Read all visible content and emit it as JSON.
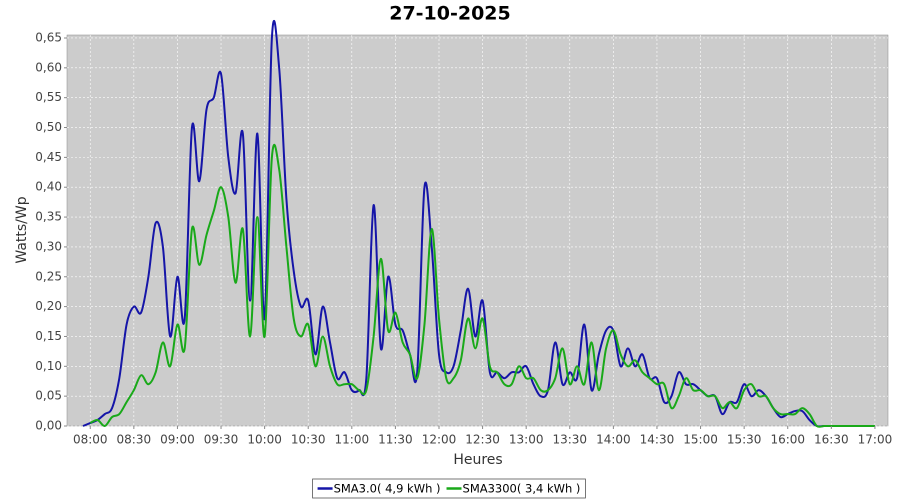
{
  "chart_data": {
    "type": "line",
    "title": "27-10-2025",
    "x_label": "Heures",
    "y_label": "Watts/Wp",
    "x": [
      "07:55",
      "08:00",
      "08:05",
      "08:10",
      "08:15",
      "08:20",
      "08:25",
      "08:30",
      "08:35",
      "08:40",
      "08:45",
      "08:50",
      "08:55",
      "09:00",
      "09:05",
      "09:10",
      "09:15",
      "09:20",
      "09:25",
      "09:30",
      "09:35",
      "09:40",
      "09:45",
      "09:50",
      "09:55",
      "10:00",
      "10:05",
      "10:10",
      "10:15",
      "10:20",
      "10:25",
      "10:30",
      "10:35",
      "10:40",
      "10:45",
      "10:50",
      "10:55",
      "11:00",
      "11:05",
      "11:10",
      "11:15",
      "11:20",
      "11:25",
      "11:30",
      "11:35",
      "11:40",
      "11:45",
      "11:50",
      "11:55",
      "12:00",
      "12:05",
      "12:10",
      "12:15",
      "12:20",
      "12:25",
      "12:30",
      "12:35",
      "12:40",
      "12:45",
      "12:50",
      "12:55",
      "13:00",
      "13:05",
      "13:10",
      "13:15",
      "13:20",
      "13:25",
      "13:30",
      "13:35",
      "13:40",
      "13:45",
      "13:50",
      "13:55",
      "14:00",
      "14:05",
      "14:10",
      "14:15",
      "14:20",
      "14:25",
      "14:30",
      "14:35",
      "14:40",
      "14:45",
      "14:50",
      "14:55",
      "15:00",
      "15:05",
      "15:10",
      "15:15",
      "15:20",
      "15:25",
      "15:30",
      "15:35",
      "15:40",
      "15:45",
      "15:50",
      "15:55",
      "16:00",
      "16:05",
      "16:10",
      "16:15",
      "16:20",
      "16:25",
      "16:30",
      "16:35",
      "16:40",
      "16:45",
      "16:50",
      "16:55",
      "17:00"
    ],
    "series": [
      {
        "name": "SMA3.0( 4,9 kWh )",
        "color": "#1515a8",
        "values": [
          0,
          0.005,
          0.01,
          0.02,
          0.03,
          0.08,
          0.17,
          0.2,
          0.19,
          0.25,
          0.34,
          0.3,
          0.15,
          0.25,
          0.18,
          0.5,
          0.41,
          0.53,
          0.55,
          0.59,
          0.45,
          0.39,
          0.49,
          0.21,
          0.49,
          0.18,
          0.65,
          0.6,
          0.38,
          0.26,
          0.2,
          0.21,
          0.12,
          0.2,
          0.14,
          0.08,
          0.09,
          0.06,
          0.06,
          0.08,
          0.37,
          0.13,
          0.25,
          0.17,
          0.16,
          0.12,
          0.09,
          0.4,
          0.3,
          0.12,
          0.09,
          0.1,
          0.16,
          0.23,
          0.15,
          0.21,
          0.09,
          0.09,
          0.08,
          0.09,
          0.09,
          0.1,
          0.07,
          0.05,
          0.06,
          0.14,
          0.07,
          0.09,
          0.08,
          0.17,
          0.06,
          0.12,
          0.16,
          0.16,
          0.1,
          0.13,
          0.1,
          0.12,
          0.08,
          0.08,
          0.04,
          0.05,
          0.09,
          0.07,
          0.07,
          0.06,
          0.05,
          0.05,
          0.02,
          0.04,
          0.04,
          0.07,
          0.05,
          0.06,
          0.05,
          0.03,
          0.015,
          0.02,
          0.025,
          0.025,
          0.01,
          0,
          0,
          0,
          0,
          0,
          0,
          0,
          null,
          null
        ]
      },
      {
        "name": "SMA3300( 3,4 kWh )",
        "color": "#19a919",
        "values": [
          null,
          0.005,
          0.01,
          0,
          0.015,
          0.02,
          0.04,
          0.06,
          0.085,
          0.07,
          0.09,
          0.14,
          0.1,
          0.17,
          0.13,
          0.33,
          0.27,
          0.32,
          0.36,
          0.4,
          0.35,
          0.24,
          0.33,
          0.15,
          0.35,
          0.15,
          0.45,
          0.43,
          0.3,
          0.18,
          0.15,
          0.17,
          0.1,
          0.15,
          0.1,
          0.07,
          0.07,
          0.07,
          0.06,
          0.06,
          0.15,
          0.28,
          0.16,
          0.19,
          0.14,
          0.12,
          0.08,
          0.17,
          0.33,
          0.18,
          0.08,
          0.08,
          0.11,
          0.18,
          0.13,
          0.18,
          0.1,
          0.09,
          0.07,
          0.07,
          0.1,
          0.08,
          0.08,
          0.06,
          0.06,
          0.08,
          0.13,
          0.07,
          0.1,
          0.07,
          0.14,
          0.06,
          0.13,
          0.16,
          0.12,
          0.1,
          0.11,
          0.09,
          0.08,
          0.07,
          0.07,
          0.03,
          0.05,
          0.08,
          0.06,
          0.06,
          0.05,
          0.05,
          0.03,
          0.04,
          0.03,
          0.06,
          0.07,
          0.05,
          0.05,
          0.03,
          0.02,
          0.02,
          0.02,
          0.03,
          0.02,
          0,
          0,
          0,
          0,
          0,
          0,
          0,
          0,
          0
        ]
      }
    ],
    "xlim": [
      "07:44",
      "17:09"
    ],
    "xticks": [
      "08:00",
      "08:30",
      "09:00",
      "09:30",
      "10:00",
      "10:30",
      "11:00",
      "11:30",
      "12:00",
      "12:30",
      "13:00",
      "13:30",
      "14:00",
      "14:30",
      "15:00",
      "15:30",
      "16:00",
      "16:30",
      "17:00"
    ],
    "ylim": [
      0,
      0.655
    ],
    "yticks": [
      {
        "value": 0,
        "label": "0,00"
      },
      {
        "value": 0.05,
        "label": "0,05"
      },
      {
        "value": 0.1,
        "label": "0,10"
      },
      {
        "value": 0.15,
        "label": "0,15"
      },
      {
        "value": 0.2,
        "label": "0,20"
      },
      {
        "value": 0.25,
        "label": "0,25"
      },
      {
        "value": 0.3,
        "label": "0,30"
      },
      {
        "value": 0.35,
        "label": "0,35"
      },
      {
        "value": 0.4,
        "label": "0,40"
      },
      {
        "value": 0.45,
        "label": "0,45"
      },
      {
        "value": 0.5,
        "label": "0,50"
      },
      {
        "value": 0.55,
        "label": "0,55"
      },
      {
        "value": 0.6,
        "label": "0,60"
      },
      {
        "value": 0.65,
        "label": "0,65"
      }
    ],
    "grid": true
  }
}
